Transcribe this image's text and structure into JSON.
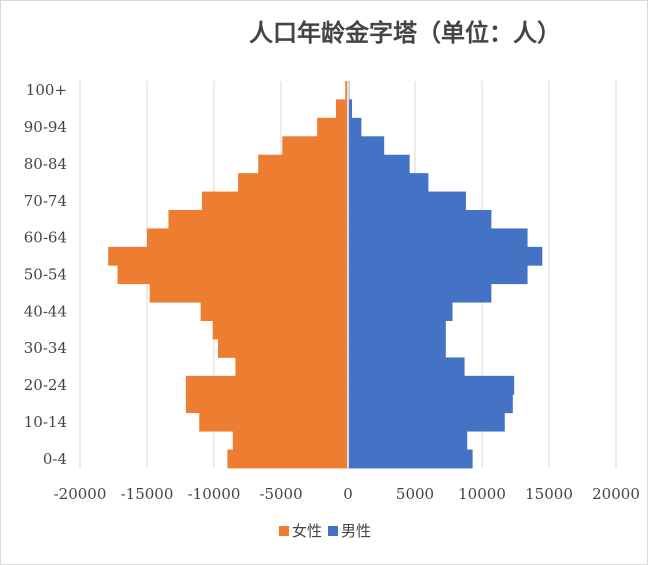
{
  "chart_data": {
    "type": "bar",
    "orientation": "horizontal",
    "title": "人口年龄金字塔（单位：人）",
    "categories": [
      "0-4",
      "",
      "10-14",
      "",
      "20-24",
      "",
      "30-34",
      "",
      "40-44",
      "",
      "50-54",
      "",
      "60-64",
      "",
      "70-74",
      "",
      "80-84",
      "",
      "90-94",
      "",
      "100+"
    ],
    "series": [
      {
        "name": "女性",
        "color": "#ED7D31",
        "values": [
          -9000,
          -8600,
          -11100,
          -12100,
          -12100,
          -8400,
          -9700,
          -10100,
          -11000,
          -14800,
          -17200,
          -17900,
          -15000,
          -13400,
          -10900,
          -8200,
          -6700,
          -4900,
          -2300,
          -900,
          -200
        ]
      },
      {
        "name": "男性",
        "color": "#4472C4",
        "values": [
          9300,
          8900,
          11700,
          12300,
          12400,
          8700,
          7300,
          7300,
          7800,
          10700,
          13400,
          14500,
          13400,
          10700,
          8800,
          6000,
          4600,
          2700,
          1000,
          300,
          100
        ]
      }
    ],
    "xlim": [
      -20000,
      20000
    ],
    "xticks": [
      "-20000",
      "-15000",
      "-10000",
      "-5000",
      "0",
      "5000",
      "10000",
      "15000",
      "20000"
    ],
    "grid": "vertical",
    "legend": "bottom"
  }
}
